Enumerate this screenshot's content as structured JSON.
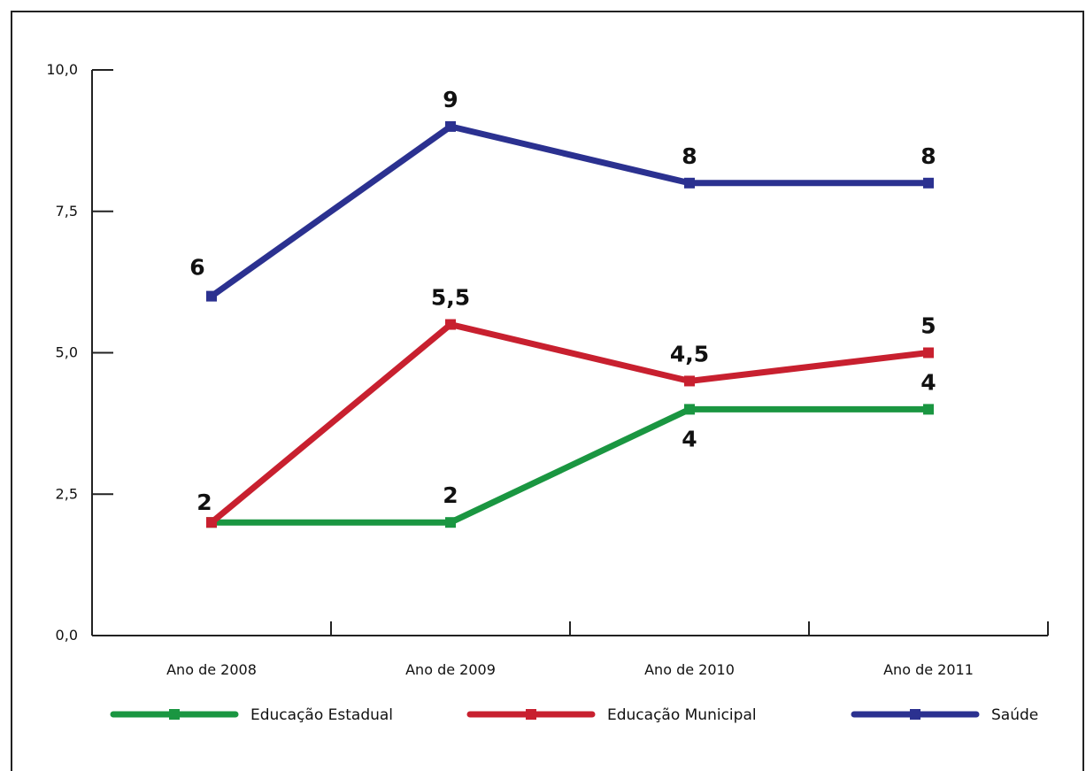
{
  "chart_data": {
    "type": "line",
    "categories": [
      "Ano de 2008",
      "Ano de 2009",
      "Ano de 2010",
      "Ano de 2011"
    ],
    "y_ticks": [
      "0,0",
      "2,5",
      "5,0",
      "7,5",
      "10,0"
    ],
    "ylim": [
      0,
      10
    ],
    "grid": false,
    "legend_position": "bottom",
    "series": [
      {
        "name": "Educação Estadual",
        "color": "#1a9641",
        "values": [
          2,
          2,
          4,
          4
        ],
        "labels": [
          "",
          "2",
          "4",
          "4"
        ],
        "label_side": [
          "above",
          "above",
          "below",
          "above"
        ]
      },
      {
        "name": "Educação Municipal",
        "color": "#c8202f",
        "values": [
          2,
          5.5,
          4.5,
          5
        ],
        "labels": [
          "2",
          "5,5",
          "4,5",
          "5"
        ],
        "label_side": [
          "above",
          "above",
          "above",
          "above"
        ]
      },
      {
        "name": "Saúde",
        "color": "#2b3190",
        "values": [
          6,
          9,
          8,
          8
        ],
        "labels": [
          "6",
          "9",
          "8",
          "8"
        ],
        "label_side": [
          "above",
          "above",
          "above",
          "above"
        ]
      }
    ]
  }
}
